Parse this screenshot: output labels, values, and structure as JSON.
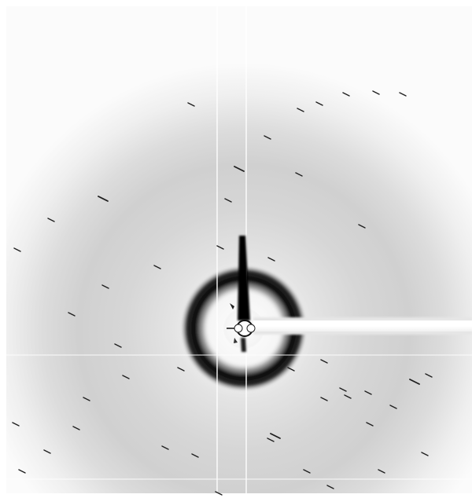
{
  "image": {
    "kind": "x-ray-diffraction-pattern",
    "colors": {
      "background": "#ffffff",
      "diffuse": "#8a8a8a",
      "ring": "#0a0a0a",
      "spot": "#1a1a1a",
      "beamstop": "#000000"
    }
  }
}
